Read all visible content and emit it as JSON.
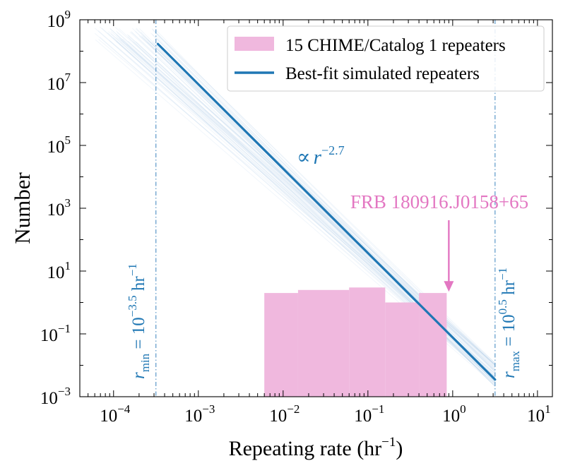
{
  "chart_data": {
    "type": "line",
    "xscale": "log",
    "yscale": "log",
    "xlim": [
      4e-05,
      15
    ],
    "ylim": [
      0.001,
      1000000000
    ],
    "x_ticks": [
      {
        "value": 0.0001,
        "base": "10",
        "exp": "−4"
      },
      {
        "value": 0.001,
        "base": "10",
        "exp": "−3"
      },
      {
        "value": 0.01,
        "base": "10",
        "exp": "−2"
      },
      {
        "value": 0.1,
        "base": "10",
        "exp": "−1"
      },
      {
        "value": 1,
        "base": "10",
        "exp": "0"
      },
      {
        "value": 10,
        "base": "10",
        "exp": "1"
      }
    ],
    "y_ticks": [
      {
        "value": 0.001,
        "base": "10",
        "exp": "−3"
      },
      {
        "value": 0.1,
        "base": "10",
        "exp": "−1"
      },
      {
        "value": 10,
        "base": "10",
        "exp": "1"
      },
      {
        "value": 1000,
        "base": "10",
        "exp": "3"
      },
      {
        "value": 100000,
        "base": "10",
        "exp": "5"
      },
      {
        "value": 10000000,
        "base": "10",
        "exp": "7"
      },
      {
        "value": 1000000000,
        "base": "10",
        "exp": "9"
      }
    ],
    "xlabel": {
      "text": "Repeating rate (hr",
      "exp": "−1",
      "close": ")"
    },
    "ylabel": "Number",
    "legend": {
      "position": "top-right",
      "entries": [
        {
          "label": "15 CHIME/Catalog 1 repeaters",
          "kind": "patch",
          "color": "#f0b8de"
        },
        {
          "label": "Best-fit simulated repeaters",
          "kind": "line",
          "color": "#1f77b4"
        }
      ]
    },
    "histogram": {
      "name": "15 CHIME/Catalog 1 repeaters",
      "color": "#f0b8de",
      "bins": [
        {
          "x0": 0.006,
          "x1": 0.015,
          "count": 2
        },
        {
          "x0": 0.015,
          "x1": 0.06,
          "count": 2.5
        },
        {
          "x0": 0.06,
          "x1": 0.16,
          "count": 3
        },
        {
          "x0": 0.16,
          "x1": 0.4,
          "count": 1
        },
        {
          "x0": 0.4,
          "x1": 0.85,
          "count": 2
        }
      ]
    },
    "best_fit": {
      "name": "Best-fit simulated repeaters",
      "color": "#1f77b4",
      "x_start": 0.000333,
      "x_end": 3.16,
      "y_start": 170000000,
      "y_end": 0.0035,
      "slope": -2.7
    },
    "simulations": {
      "color": "#a9c8e8",
      "count": 60,
      "x_start_range": [
        6e-05,
        0.00035
      ],
      "y_start_range": [
        170000000,
        600000000
      ],
      "x_end": 3.16,
      "y_end_range": [
        0.002,
        0.012
      ]
    },
    "vlines": [
      {
        "x": 0.000316,
        "color": "#5b97c8"
      },
      {
        "x": 3.16,
        "color": "#5b97c8"
      }
    ],
    "annotations": {
      "slope_label": {
        "prefix": "∝",
        "var": "r",
        "exp": "−2.7"
      },
      "rmin_label": {
        "var": "r",
        "sub": "min",
        "eq": " = 10",
        "exp": "−3.5",
        "unit": " hr",
        "unit_exp": "−1"
      },
      "rmax_label": {
        "var": "r",
        "sub": "max",
        "eq": " = 10",
        "exp": "0.5",
        "unit": " hr",
        "unit_exp": "−1"
      },
      "frb_label": {
        "text": "FRB 180916.J0158+65",
        "color": "#e377c2",
        "x": 0.9,
        "y_arrow_tip": 2.2
      }
    }
  }
}
